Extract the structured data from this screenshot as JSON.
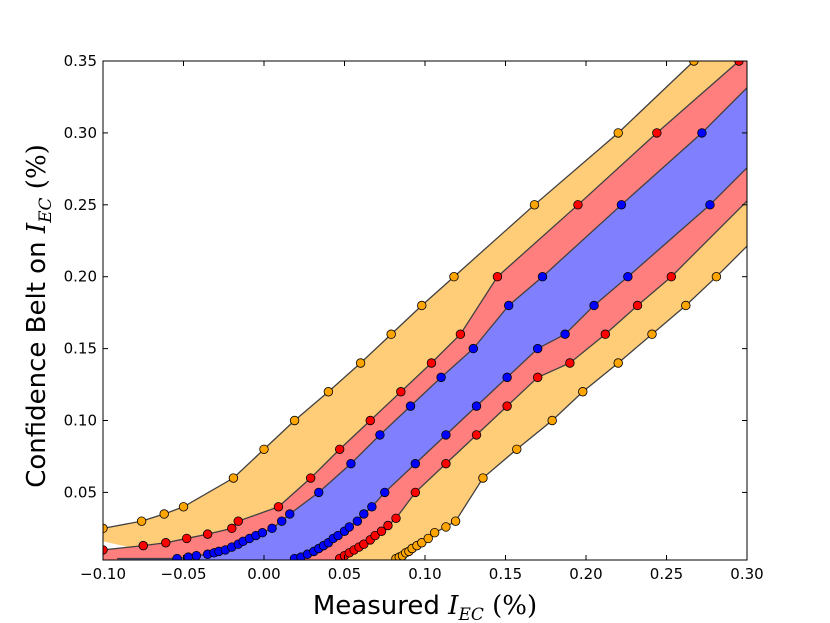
{
  "chart_data": {
    "type": "area",
    "xlabel": {
      "prefix": "Measured",
      "symbol": "I",
      "subscript": "EC",
      "unit": "(%)"
    },
    "ylabel": {
      "prefix": "Confidence Belt on",
      "symbol": "I",
      "subscript": "EC",
      "unit": "(%)"
    },
    "xlim": [
      -0.1,
      0.3
    ],
    "ylim": [
      0.003,
      0.35
    ],
    "xticks": [
      -0.1,
      -0.05,
      0.0,
      0.05,
      0.1,
      0.15,
      0.2,
      0.25,
      0.3
    ],
    "xtick_labels": [
      "−0.10",
      "−0.05",
      "0.00",
      "0.05",
      "0.10",
      "0.15",
      "0.20",
      "0.25",
      "0.30"
    ],
    "yticks": [
      0.05,
      0.1,
      0.15,
      0.2,
      0.25,
      0.3,
      0.35
    ],
    "ytick_labels": [
      "0.05",
      "0.10",
      "0.15",
      "0.20",
      "0.25",
      "0.30",
      "0.35"
    ],
    "grid": false,
    "band_colors": {
      "outer": "#ffcc77",
      "middle": "#ff7f7f",
      "inner": "#8080ff"
    },
    "line_color": "#404040",
    "curves": [
      {
        "id": "outer-upper",
        "marker_color": "#ffa500",
        "x": [
          -0.1,
          -0.076,
          -0.062,
          -0.05,
          -0.019,
          0.0,
          0.019,
          0.04,
          0.06,
          0.079,
          0.098,
          0.118,
          0.168,
          0.22,
          0.267
        ],
        "y": [
          0.025,
          0.03,
          0.035,
          0.04,
          0.06,
          0.08,
          0.1,
          0.12,
          0.14,
          0.16,
          0.18,
          0.2,
          0.25,
          0.3,
          0.35
        ]
      },
      {
        "id": "middle-upper",
        "marker_color": "#ff0000",
        "x": [
          -0.1,
          -0.075,
          -0.061,
          -0.048,
          -0.035,
          -0.02,
          -0.016,
          0.009,
          0.029,
          0.047,
          0.066,
          0.085,
          0.104,
          0.122,
          0.145,
          0.195,
          0.244,
          0.295
        ],
        "y": [
          0.01,
          0.013,
          0.015,
          0.018,
          0.021,
          0.025,
          0.03,
          0.04,
          0.06,
          0.08,
          0.1,
          0.12,
          0.14,
          0.16,
          0.2,
          0.25,
          0.3,
          0.35
        ]
      },
      {
        "id": "inner-upper",
        "marker_color": "#0000ff",
        "x": [
          -0.054,
          -0.047,
          -0.042,
          -0.035,
          -0.031,
          -0.028,
          -0.024,
          -0.02,
          -0.016,
          -0.013,
          -0.009,
          -0.005,
          -0.001,
          0.005,
          0.011,
          0.016,
          0.034,
          0.054,
          0.072,
          0.091,
          0.11,
          0.13,
          0.152,
          0.173,
          0.222,
          0.272
        ],
        "y": [
          0.004,
          0.005,
          0.006,
          0.007,
          0.008,
          0.009,
          0.01,
          0.012,
          0.014,
          0.016,
          0.018,
          0.02,
          0.022,
          0.025,
          0.03,
          0.035,
          0.05,
          0.07,
          0.09,
          0.11,
          0.13,
          0.15,
          0.18,
          0.2,
          0.25,
          0.3
        ]
      },
      {
        "id": "inner-lower",
        "marker_color": "#0000ff",
        "x": [
          0.019,
          0.023,
          0.027,
          0.031,
          0.034,
          0.037,
          0.04,
          0.043,
          0.046,
          0.05,
          0.053,
          0.058,
          0.062,
          0.067,
          0.075,
          0.094,
          0.113,
          0.132,
          0.151,
          0.17,
          0.187,
          0.205,
          0.226,
          0.277
        ],
        "y": [
          0.004,
          0.005,
          0.007,
          0.009,
          0.011,
          0.013,
          0.015,
          0.018,
          0.02,
          0.023,
          0.026,
          0.03,
          0.035,
          0.04,
          0.05,
          0.07,
          0.09,
          0.11,
          0.13,
          0.15,
          0.16,
          0.18,
          0.2,
          0.25
        ]
      },
      {
        "id": "middle-lower",
        "marker_color": "#ff0000",
        "x": [
          0.047,
          0.05,
          0.053,
          0.056,
          0.059,
          0.062,
          0.066,
          0.069,
          0.073,
          0.077,
          0.082,
          0.094,
          0.113,
          0.132,
          0.151,
          0.17,
          0.19,
          0.212,
          0.232,
          0.253
        ],
        "y": [
          0.004,
          0.006,
          0.008,
          0.01,
          0.012,
          0.014,
          0.017,
          0.02,
          0.023,
          0.027,
          0.032,
          0.05,
          0.07,
          0.09,
          0.11,
          0.13,
          0.14,
          0.16,
          0.18,
          0.2
        ]
      },
      {
        "id": "outer-lower",
        "marker_color": "#ffa500",
        "x": [
          0.082,
          0.084,
          0.086,
          0.088,
          0.09,
          0.092,
          0.095,
          0.098,
          0.102,
          0.106,
          0.113,
          0.119,
          0.136,
          0.157,
          0.179,
          0.198,
          0.22,
          0.241,
          0.262,
          0.281
        ],
        "y": [
          0.004,
          0.005,
          0.006,
          0.008,
          0.009,
          0.011,
          0.013,
          0.015,
          0.018,
          0.022,
          0.026,
          0.03,
          0.06,
          0.08,
          0.1,
          0.12,
          0.14,
          0.16,
          0.18,
          0.2
        ]
      }
    ]
  }
}
